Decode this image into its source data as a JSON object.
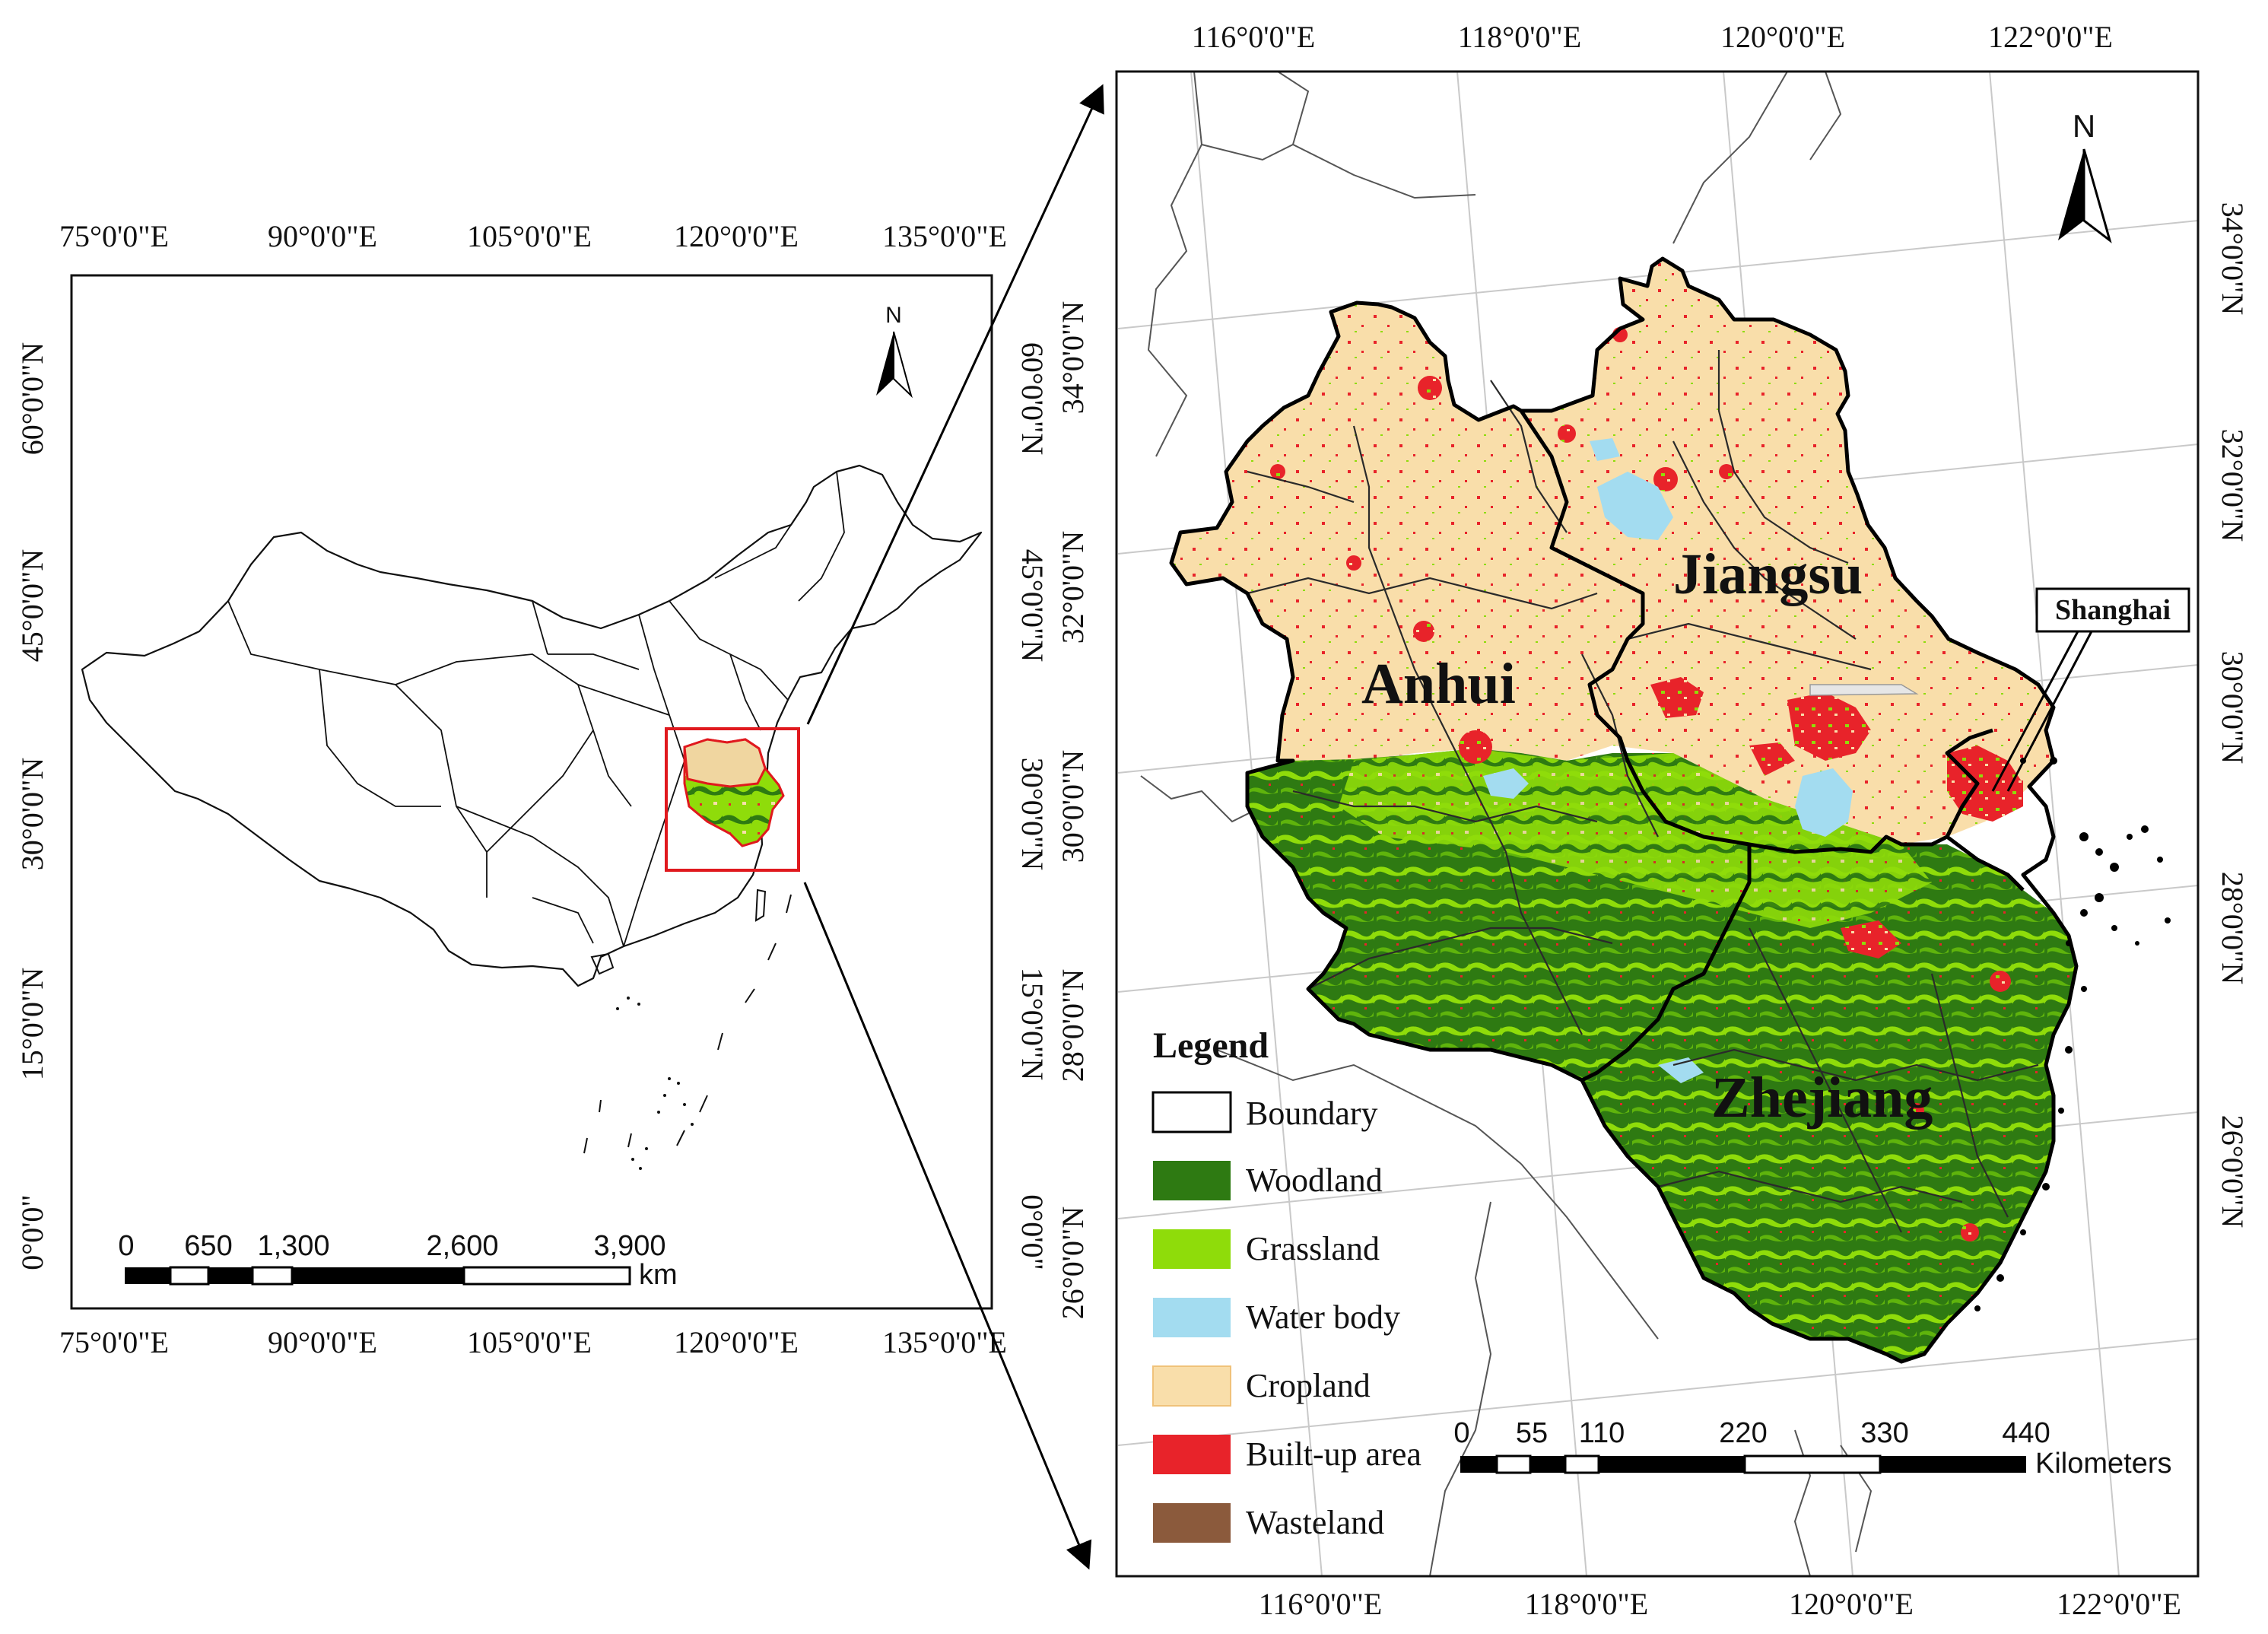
{
  "left_map": {
    "top_ticks": [
      "75°0'0\"E",
      "90°0'0\"E",
      "105°0'0\"E",
      "120°0'0\"E",
      "135°0'0\"E"
    ],
    "bottom_ticks": [
      "75°0'0\"E",
      "90°0'0\"E",
      "105°0'0\"E",
      "120°0'0\"E",
      "135°0'0\"E"
    ],
    "left_ticks": [
      "60°0'0\"N",
      "45°0'0\"N",
      "30°0'0\"N",
      "15°0'0\"N",
      "0°0'0\""
    ],
    "right_ticks": [
      "60°0'0\"N",
      "45°0'0\"N",
      "30°0'0\"N",
      "15°0'0\"N",
      "0°0'0\""
    ],
    "north": "N",
    "scale": {
      "labels": [
        "0",
        "650",
        "1,300",
        "2,600",
        "3,900"
      ],
      "unit": "km"
    },
    "highlight_color": "#e0191e"
  },
  "right_map": {
    "top_ticks": [
      "116°0'0\"E",
      "118°0'0\"E",
      "120°0'0\"E",
      "122°0'0\"E"
    ],
    "bottom_ticks": [
      "116°0'0\"E",
      "118°0'0\"E",
      "120°0'0\"E",
      "122°0'0\"E"
    ],
    "left_ticks": [
      "34°0'0\"N",
      "32°0'0\"N",
      "30°0'0\"N",
      "28°0'0\"N",
      "26°0'0\"N"
    ],
    "right_ticks": [
      "34°0'0\"N",
      "32°0'0\"N",
      "30°0'0\"N",
      "28°0'0\"N",
      "26°0'0\"N"
    ],
    "north": "N",
    "provinces": {
      "anhui": "Anhui",
      "jiangsu": "Jiangsu",
      "zhejiang": "Zhejiang",
      "shanghai": "Shanghai"
    },
    "scale": {
      "labels": [
        "0",
        "55",
        "110",
        "220",
        "330",
        "440"
      ],
      "unit": "Kilometers"
    }
  },
  "legend": {
    "title": "Legend",
    "items": [
      {
        "label": "Boundary",
        "color": "#ffffff"
      },
      {
        "label": "Woodland",
        "color": "#2e7a12"
      },
      {
        "label": "Grassland",
        "color": "#8fdc0a"
      },
      {
        "label": "Water body",
        "color": "#a3dcf0"
      },
      {
        "label": "Cropland",
        "color": "#f9deaa"
      },
      {
        "label": "Built-up area",
        "color": "#e8232a"
      },
      {
        "label": "Wasteland",
        "color": "#8b5a3c"
      }
    ]
  }
}
